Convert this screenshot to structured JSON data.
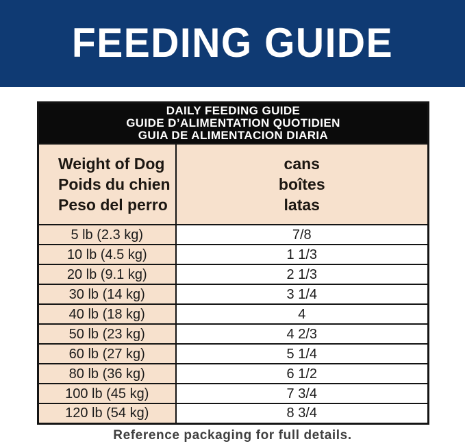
{
  "colors": {
    "banner_bg": "#0f3a73",
    "banner_text": "#ffffff",
    "band_bg": "#0b0b0b",
    "band_text": "#ffffff",
    "cell_beige": "#f7e1cd",
    "cell_white": "#ffffff",
    "border": "#141414",
    "footer_text": "#3f3f3f"
  },
  "banner": {
    "title": "FEEDING GUIDE"
  },
  "table": {
    "title_lines": [
      "DAILY FEEDING GUIDE",
      "GUIDE D’ALIMENTATION QUOTIDIEN",
      "GUIA DE ALIMENTACION DIARIA"
    ],
    "weight_header_lines": [
      "Weight of Dog",
      "Poids du chien",
      "Peso del perro"
    ],
    "cans_header_lines": [
      "cans",
      "boîtes",
      "latas"
    ],
    "rows": [
      {
        "weight": "5 lb (2.3 kg)",
        "cans": "7/8"
      },
      {
        "weight": "10 lb (4.5 kg)",
        "cans": "1 1/3"
      },
      {
        "weight": "20 lb (9.1 kg)",
        "cans": "2 1/3"
      },
      {
        "weight": "30 lb (14 kg)",
        "cans": "3 1/4"
      },
      {
        "weight": "40 lb (18 kg)",
        "cans": "4"
      },
      {
        "weight": "50 lb (23 kg)",
        "cans": "4 2/3"
      },
      {
        "weight": "60 lb (27 kg)",
        "cans": "5 1/4"
      },
      {
        "weight": "80 lb (36 kg)",
        "cans": "6 1/2"
      },
      {
        "weight": "100 lb (45 kg)",
        "cans": "7 3/4"
      },
      {
        "weight": "120 lb (54 kg)",
        "cans": "8 3/4"
      }
    ]
  },
  "footer": {
    "note": "Reference packaging for full details."
  }
}
